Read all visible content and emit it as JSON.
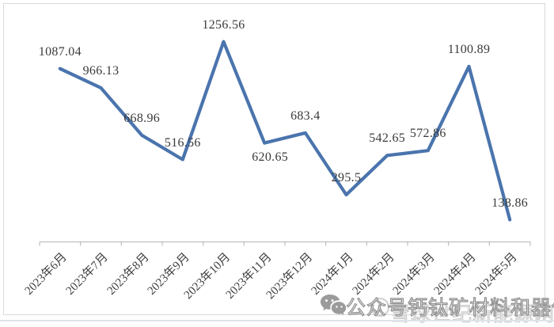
{
  "chart_data": {
    "type": "line",
    "title": "",
    "xlabel": "",
    "ylabel": "",
    "categories": [
      "2023年6月",
      "2023年7月",
      "2023年8月",
      "2023年9月",
      "2023年10月",
      "2023年11月",
      "2023年12月",
      "2024年1月",
      "2024年2月",
      "2024年3月",
      "2024年4月",
      "2024年5月"
    ],
    "values": [
      1087.04,
      966.13,
      668.96,
      516.56,
      1256.56,
      620.65,
      683.4,
      295.5,
      542.65,
      572.86,
      1100.89,
      138.86
    ],
    "labels": [
      "1087.04",
      "966.13",
      "668.96",
      "516.56",
      "1256.56",
      "620.65",
      "683.4",
      "295.5",
      "542.65",
      "572.86",
      "1100.89",
      "138.86"
    ],
    "label_positions": [
      "above",
      "above",
      "above",
      "above",
      "above",
      "below",
      "above",
      "above",
      "above",
      "above",
      "above",
      "above"
    ],
    "ylim": [
      0,
      1400
    ],
    "grid": false,
    "legend_position": "none",
    "line_color": "#4a74ad",
    "axis_color": "#bfbfbf",
    "label_color": "#3a3a3a"
  },
  "watermark": {
    "wechat_icon": "wechat-icon",
    "site_logo_icon": "site-logo-icon",
    "account_text": "公众号钙钛矿材料和器件",
    "site_text": "雪球世纪新能源网",
    "dark_color": "#8f8f8f",
    "light_color": "#c9c9c9"
  }
}
